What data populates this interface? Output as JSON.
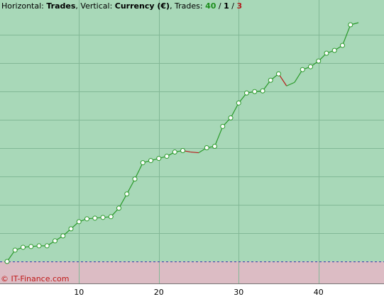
{
  "header": {
    "h_label": "Horizontal: ",
    "h_value": "Trades",
    "v_label": ", Vertical: ",
    "v_value": "Currency (€)",
    "t_label": ", Trades: ",
    "wins": "40",
    "sep1": " / ",
    "even": "1",
    "sep2": " / ",
    "losses": "3"
  },
  "credit": "© IT-Finance.com",
  "colors": {
    "profit_zone": "#a8d8b8",
    "loss_zone": "#dcbcc4",
    "win_line": "#2a9a2a",
    "loss_line": "#b81818",
    "baseline": "#3a3aaa"
  },
  "chart_data": {
    "type": "line",
    "xlabel": "",
    "ylabel": "",
    "xlim": [
      1,
      47
    ],
    "x_ticks": [
      10,
      20,
      30,
      40
    ],
    "x_tick_labels": [
      "10",
      "20",
      "30",
      "40"
    ],
    "grid": true,
    "baseline": 0,
    "ylim": [
      -30,
      368
    ],
    "x": [
      1,
      2,
      3,
      4,
      5,
      6,
      7,
      8,
      9,
      10,
      11,
      12,
      13,
      14,
      15,
      16,
      17,
      18,
      19,
      20,
      21,
      22,
      23,
      24,
      25,
      26,
      27,
      28,
      29,
      30,
      31,
      32,
      33,
      34,
      35,
      36,
      37,
      38,
      39,
      40,
      41,
      42,
      43,
      44,
      45
    ],
    "y": [
      0,
      16,
      20,
      21,
      22,
      22,
      29,
      36,
      46,
      56,
      60,
      61,
      62,
      63,
      75,
      95,
      116,
      139,
      142,
      145,
      148,
      154,
      156,
      154,
      153,
      160,
      162,
      190,
      202,
      223,
      237,
      239,
      240,
      255,
      264,
      247,
      252,
      270,
      274,
      282,
      293,
      297,
      304,
      333,
      336
    ],
    "markers": [
      true,
      true,
      true,
      true,
      true,
      true,
      true,
      true,
      true,
      true,
      true,
      true,
      true,
      true,
      true,
      true,
      true,
      true,
      true,
      true,
      true,
      true,
      true,
      false,
      false,
      true,
      true,
      true,
      true,
      true,
      true,
      true,
      true,
      true,
      true,
      false,
      false,
      true,
      true,
      true,
      true,
      true,
      true,
      true,
      false
    ]
  }
}
